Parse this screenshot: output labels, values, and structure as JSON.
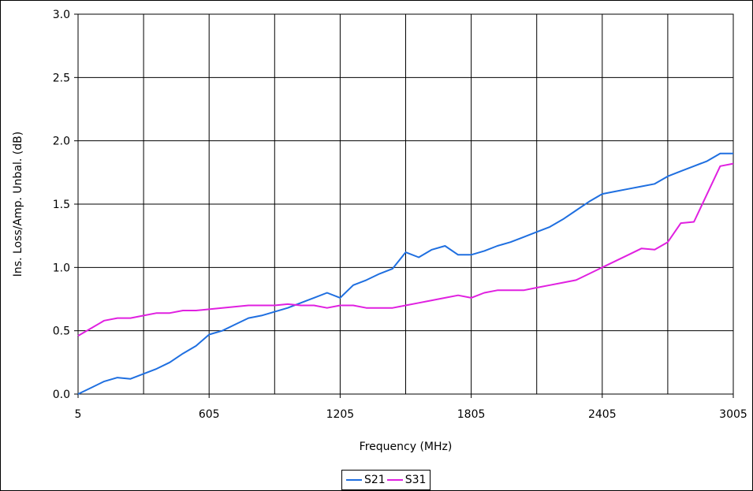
{
  "chart_data": {
    "type": "line",
    "title": "",
    "xlabel": "Frequency (MHz)",
    "ylabel": "Ins. Loss/Amp. Unbal. (dB)",
    "xlim": [
      5,
      3005
    ],
    "ylim": [
      0,
      3.0
    ],
    "x_ticks": [
      "5",
      "605",
      "1205",
      "1805",
      "2405",
      "3005"
    ],
    "y_ticks": [
      "0.0",
      "0.5",
      "1.0",
      "1.5",
      "2.0",
      "2.5",
      "3.0"
    ],
    "grid": true,
    "legend_position": "bottom",
    "series": [
      {
        "name": "S21",
        "color": "#1f6fe0",
        "x": [
          5,
          65,
          125,
          185,
          245,
          305,
          365,
          425,
          485,
          545,
          605,
          665,
          725,
          785,
          845,
          905,
          965,
          1025,
          1085,
          1145,
          1205,
          1265,
          1325,
          1385,
          1445,
          1505,
          1565,
          1625,
          1685,
          1745,
          1805,
          1865,
          1925,
          1985,
          2045,
          2105,
          2165,
          2225,
          2285,
          2345,
          2405,
          2465,
          2525,
          2585,
          2645,
          2705,
          2765,
          2825,
          2885,
          2945,
          3005
        ],
        "values": [
          0.0,
          0.05,
          0.1,
          0.13,
          0.12,
          0.16,
          0.2,
          0.25,
          0.32,
          0.38,
          0.47,
          0.5,
          0.55,
          0.6,
          0.62,
          0.65,
          0.68,
          0.72,
          0.76,
          0.8,
          0.76,
          0.86,
          0.9,
          0.95,
          0.99,
          1.12,
          1.08,
          1.14,
          1.17,
          1.1,
          1.1,
          1.13,
          1.17,
          1.2,
          1.24,
          1.28,
          1.32,
          1.38,
          1.45,
          1.52,
          1.58,
          1.6,
          1.62,
          1.64,
          1.66,
          1.72,
          1.76,
          1.8,
          1.84,
          1.9,
          1.9
        ]
      },
      {
        "name": "S31",
        "color": "#e020e0",
        "x": [
          5,
          65,
          125,
          185,
          245,
          305,
          365,
          425,
          485,
          545,
          605,
          665,
          725,
          785,
          845,
          905,
          965,
          1025,
          1085,
          1145,
          1205,
          1265,
          1325,
          1385,
          1445,
          1505,
          1565,
          1625,
          1685,
          1745,
          1805,
          1865,
          1925,
          1985,
          2045,
          2105,
          2165,
          2225,
          2285,
          2345,
          2405,
          2465,
          2525,
          2585,
          2645,
          2705,
          2765,
          2825,
          2885,
          2945,
          3005
        ],
        "values": [
          0.46,
          0.52,
          0.58,
          0.6,
          0.6,
          0.62,
          0.64,
          0.64,
          0.66,
          0.66,
          0.67,
          0.68,
          0.69,
          0.7,
          0.7,
          0.7,
          0.71,
          0.7,
          0.7,
          0.68,
          0.7,
          0.7,
          0.68,
          0.68,
          0.68,
          0.7,
          0.72,
          0.74,
          0.76,
          0.78,
          0.76,
          0.8,
          0.82,
          0.82,
          0.82,
          0.84,
          0.86,
          0.88,
          0.9,
          0.95,
          1.0,
          1.05,
          1.1,
          1.15,
          1.14,
          1.2,
          1.35,
          1.36,
          1.58,
          1.8,
          1.82
        ]
      }
    ]
  }
}
